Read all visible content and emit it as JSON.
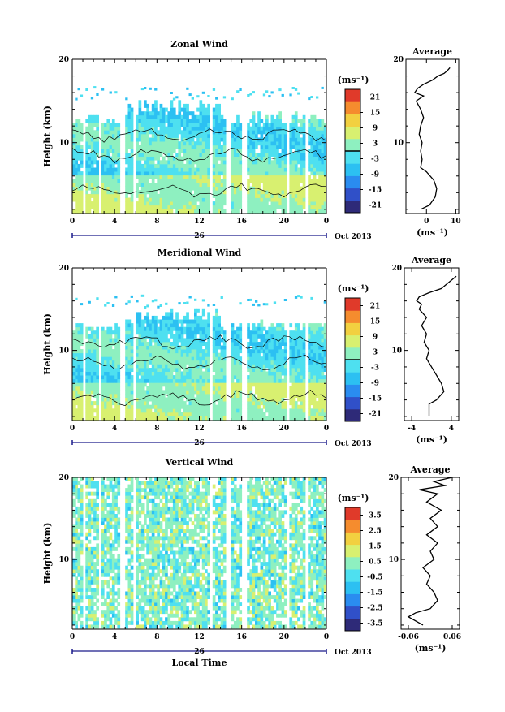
{
  "chart_data": [
    {
      "type": "heatmap",
      "title": "Zonal Wind",
      "xlabel": "",
      "ylabel": "Height (km)",
      "x_ticks": [
        "0",
        "4",
        "8",
        "12",
        "16",
        "20",
        "0"
      ],
      "xlim": [
        0,
        24
      ],
      "y_ticks": [
        "10",
        "20"
      ],
      "ylim": [
        1.5,
        20
      ],
      "date_label": "26",
      "month_label": "Oct 2013",
      "colorbar": {
        "unit": "(ms⁻¹)",
        "ticks": [
          "21",
          "15",
          "9",
          "3",
          "-3",
          "-9",
          "-15",
          "-21"
        ],
        "range": [
          -24,
          24
        ]
      },
      "average_panel": {
        "title": "Average",
        "x_ticks": [
          "0",
          "10"
        ],
        "xlim": [
          -7,
          11
        ],
        "y_ticks": [
          "10",
          "20"
        ],
        "xlabel": "(ms⁻¹)",
        "profile": [
          [
            -2,
            2
          ],
          [
            1,
            2.5
          ],
          [
            3,
            3.5
          ],
          [
            3.5,
            4.5
          ],
          [
            2.5,
            5.5
          ],
          [
            0,
            6.5
          ],
          [
            -2,
            7
          ],
          [
            -1.5,
            8
          ],
          [
            -2,
            9
          ],
          [
            -1.5,
            10
          ],
          [
            -2.5,
            11
          ],
          [
            -2,
            12
          ],
          [
            -1,
            13
          ],
          [
            -2,
            14
          ],
          [
            -3.5,
            15
          ],
          [
            -1,
            15.6
          ],
          [
            -4,
            16
          ],
          [
            -3,
            16.5
          ],
          [
            -1,
            17
          ],
          [
            2,
            17.5
          ],
          [
            4,
            18
          ],
          [
            6,
            18.3
          ],
          [
            7,
            18.6
          ],
          [
            8,
            19
          ]
        ]
      }
    },
    {
      "type": "heatmap",
      "title": "Meridional Wind",
      "xlabel": "",
      "ylabel": "Height (km)",
      "x_ticks": [
        "0",
        "4",
        "8",
        "12",
        "16",
        "20",
        "0"
      ],
      "xlim": [
        0,
        24
      ],
      "y_ticks": [
        "10",
        "20"
      ],
      "ylim": [
        1.5,
        20
      ],
      "date_label": "26",
      "month_label": "Oct 2013",
      "colorbar": {
        "unit": "(ms⁻¹)",
        "ticks": [
          "21",
          "15",
          "9",
          "3",
          "-3",
          "-9",
          "-15",
          "-21"
        ],
        "range": [
          -24,
          24
        ]
      },
      "average_panel": {
        "title": "Average",
        "x_ticks": [
          "-4",
          "4"
        ],
        "xlim": [
          -5.5,
          5.5
        ],
        "y_ticks": [
          "10",
          "20"
        ],
        "xlabel": "(ms⁻¹)",
        "profile": [
          [
            -0.5,
            2
          ],
          [
            -0.5,
            3
          ],
          [
            -0.5,
            3.5
          ],
          [
            1,
            4
          ],
          [
            2.5,
            5
          ],
          [
            2,
            6
          ],
          [
            1,
            7
          ],
          [
            0,
            8
          ],
          [
            -1,
            9
          ],
          [
            -0.5,
            10
          ],
          [
            -1.5,
            11
          ],
          [
            -1,
            12
          ],
          [
            -2,
            13
          ],
          [
            -1,
            14
          ],
          [
            -2.5,
            15
          ],
          [
            -2,
            15.6
          ],
          [
            -3,
            16
          ],
          [
            -2.5,
            16.5
          ],
          [
            -0.5,
            17
          ],
          [
            2,
            17.5
          ],
          [
            3,
            18
          ],
          [
            4,
            18.5
          ],
          [
            5,
            19
          ]
        ]
      }
    },
    {
      "type": "heatmap",
      "title": "Vertical Wind",
      "xlabel": "Local Time",
      "ylabel": "Height (km)",
      "x_ticks": [
        "0",
        "4",
        "8",
        "12",
        "16",
        "20",
        "0"
      ],
      "xlim": [
        0,
        24
      ],
      "y_ticks": [
        "10",
        "20"
      ],
      "ylim": [
        1.5,
        20
      ],
      "date_label": "26",
      "month_label": "Oct 2013",
      "colorbar": {
        "unit": "(ms⁻¹)",
        "ticks": [
          "3.5",
          "2.5",
          "1.5",
          "0.5",
          "-0.5",
          "-1.5",
          "-2.5",
          "-3.5"
        ],
        "range": [
          -4,
          4
        ]
      },
      "average_panel": {
        "title": "Average",
        "x_ticks": [
          "-0.06",
          "0.06"
        ],
        "xlim": [
          -0.08,
          0.08
        ],
        "y_ticks": [
          "10",
          "20"
        ],
        "xlabel": "(ms⁻¹)",
        "profile": [
          [
            -0.02,
            2
          ],
          [
            -0.06,
            3
          ],
          [
            -0.04,
            3.5
          ],
          [
            0,
            4
          ],
          [
            0.02,
            5
          ],
          [
            0.01,
            6
          ],
          [
            -0.01,
            7
          ],
          [
            0,
            8
          ],
          [
            -0.02,
            9
          ],
          [
            0.01,
            10
          ],
          [
            0,
            11
          ],
          [
            0.02,
            12
          ],
          [
            -0.01,
            13
          ],
          [
            0.02,
            14
          ],
          [
            0,
            15
          ],
          [
            0.03,
            16
          ],
          [
            -0.01,
            17
          ],
          [
            0.02,
            18
          ],
          [
            -0.03,
            18.5
          ],
          [
            0.04,
            19
          ],
          [
            0.01,
            19.5
          ],
          [
            0.06,
            20
          ]
        ]
      }
    }
  ]
}
